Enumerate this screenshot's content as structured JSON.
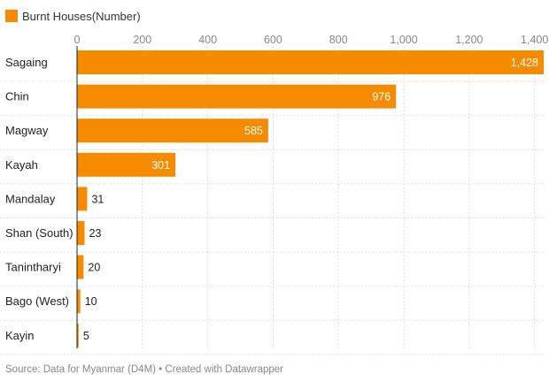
{
  "legend": {
    "label": "Burnt Houses(Number)",
    "color": "#f78b00"
  },
  "source": "Source: Data for Myanmar (D4M) • Created with Datawrapper",
  "colors": {
    "bar": "#f78b00",
    "grid": "#dddddd",
    "axis": "#222222"
  },
  "chart_data": {
    "type": "bar",
    "orientation": "horizontal",
    "title": "",
    "xlabel": "",
    "ylabel": "",
    "legend": [
      "Burnt Houses(Number)"
    ],
    "categories": [
      "Sagaing",
      "Chin",
      "Magway",
      "Kayah",
      "Mandalay",
      "Shan (South)",
      "Tanintharyi",
      "Bago (West)",
      "Kayin"
    ],
    "series": [
      {
        "name": "Burnt Houses(Number)",
        "values": [
          1428,
          976,
          585,
          301,
          31,
          23,
          20,
          10,
          5
        ]
      }
    ],
    "value_labels": [
      "1,428",
      "976",
      "585",
      "301",
      "31",
      "23",
      "20",
      "10",
      "5"
    ],
    "xlim": [
      0,
      1428
    ],
    "x_ticks": [
      0,
      200,
      400,
      600,
      800,
      1000,
      1200,
      1400
    ],
    "x_tick_labels": [
      "0",
      "200",
      "400",
      "600",
      "800",
      "1,000",
      "1,200",
      "1,400"
    ],
    "grid": true,
    "legend_position": "top-left"
  }
}
